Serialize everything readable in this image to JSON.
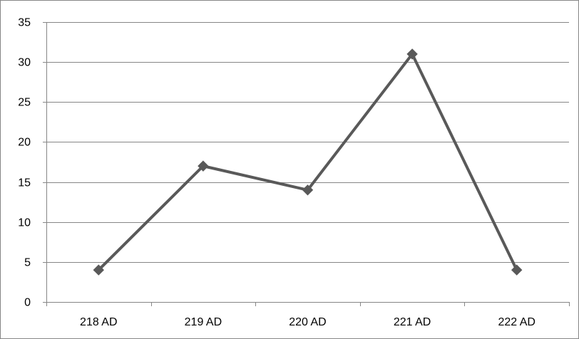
{
  "chart_data": {
    "type": "line",
    "categories": [
      "218 AD",
      "219 AD",
      "220 AD",
      "221 AD",
      "222 AD"
    ],
    "series": [
      {
        "values": [
          4,
          17,
          14,
          31,
          4
        ]
      }
    ],
    "ylim": [
      0,
      35
    ],
    "yticks": [
      0,
      5,
      10,
      15,
      20,
      25,
      30,
      35
    ],
    "ytick_labels": [
      "0",
      "5",
      "10",
      "15",
      "20",
      "25",
      "30",
      "35"
    ],
    "grid": true,
    "legend": "none",
    "marker": "diamond",
    "colors": {
      "line": "#595959",
      "grid": "#868686",
      "axis": "#868686",
      "frame": "#868686"
    }
  }
}
